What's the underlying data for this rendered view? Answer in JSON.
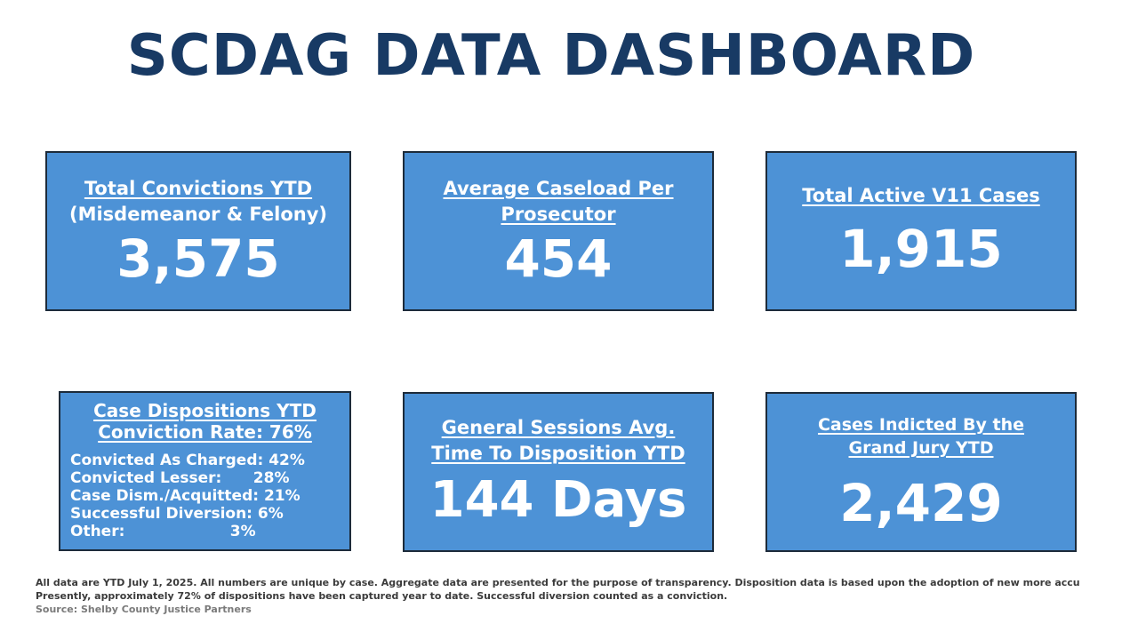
{
  "title": "SCDAG DATA DASHBOARD",
  "cards": {
    "convictions": {
      "heading": "Total Convictions YTD",
      "subheading": "(Misdemeanor & Felony)",
      "value": "3,575"
    },
    "caseload": {
      "heading_line1": "Average Caseload Per",
      "heading_line2": "Prosecutor",
      "value": "454"
    },
    "v11": {
      "heading": "Total Active V11 Cases",
      "value": "1,915"
    },
    "dispositions": {
      "heading_line1": "Case Dispositions YTD",
      "heading_line2": "Conviction Rate:  76%",
      "items": [
        "Convicted As Charged: 42%",
        "Convicted Lesser:      28%",
        "Case Dism./Acquitted: 21%",
        "Successful Diversion: 6%",
        "Other:                    3%"
      ]
    },
    "sessions": {
      "heading_line1": "General Sessions Avg.",
      "heading_line2": "Time To Disposition YTD",
      "value": "144 Days"
    },
    "indicted": {
      "heading_line1": "Cases Indicted By the",
      "heading_line2": "Grand Jury YTD",
      "value": "2,429"
    }
  },
  "footer": {
    "line1": "All data are YTD July 1, 2025.  All numbers are unique by case. Aggregate data are presented for the purpose of transparency. Disposition data is based upon the adoption of new more accu",
    "line2": "Presently, approximately 72% of dispositions have been captured year to date.  Successful diversion counted as a conviction.",
    "source": "Source: Shelby County Justice Partners"
  }
}
